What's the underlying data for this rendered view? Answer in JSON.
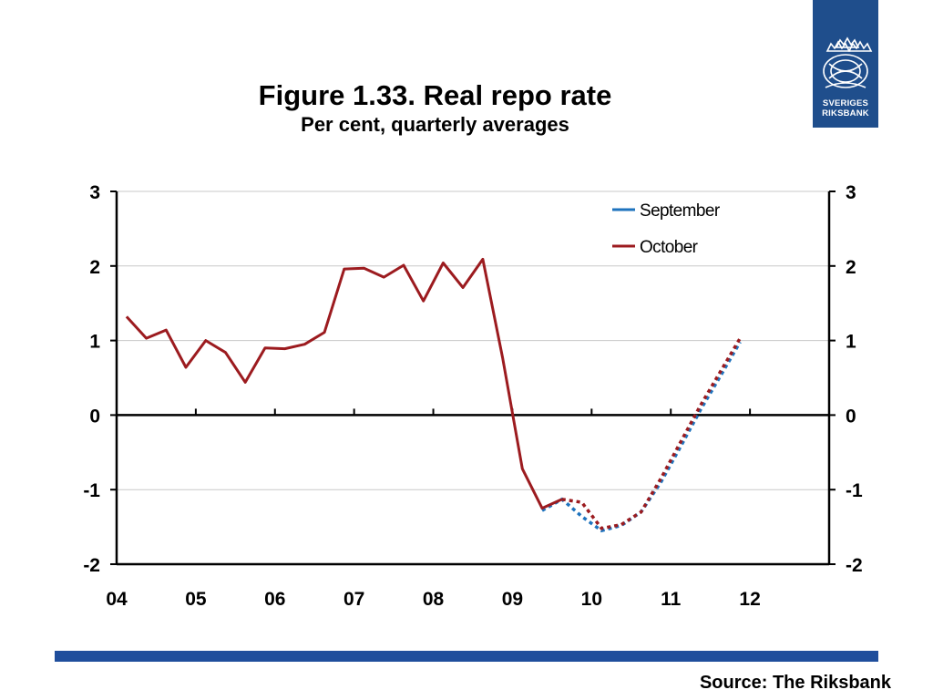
{
  "header": {
    "title": "Figure 1.33. Real repo rate",
    "subtitle": "Per cent, quarterly averages"
  },
  "logo": {
    "line1": "SVERIGES",
    "line2": "RIKSBANK",
    "icon": "crowned-crest-icon",
    "color": "#1f4e8c"
  },
  "footer": {
    "source": "Source: The Riksbank",
    "bar_color": "#1f4e9c"
  },
  "chart_data": {
    "type": "line",
    "title": "Figure 1.33. Real repo rate",
    "subtitle": "Per cent, quarterly averages",
    "xlabel": "",
    "ylabel": "",
    "x_ticks": [
      "04",
      "05",
      "06",
      "07",
      "08",
      "09",
      "10",
      "11",
      "12"
    ],
    "xlim": [
      2004,
      2013
    ],
    "ylim": [
      -2,
      3
    ],
    "y_ticks": [
      3,
      2,
      1,
      0,
      -1,
      -2
    ],
    "dual_y_axis": true,
    "grid": "horizontal",
    "legend": {
      "placement": "top-right"
    },
    "series": [
      {
        "name": "September",
        "color": "#1e73be",
        "style": "forecast-dashed",
        "points": [
          {
            "x": 2009.375,
            "y": -1.28
          },
          {
            "x": 2009.625,
            "y": -1.13
          },
          {
            "x": 2009.875,
            "y": -1.36
          },
          {
            "x": 2010.125,
            "y": -1.55
          },
          {
            "x": 2010.375,
            "y": -1.48
          },
          {
            "x": 2010.625,
            "y": -1.3
          },
          {
            "x": 2010.875,
            "y": -0.9
          },
          {
            "x": 2011.125,
            "y": -0.42
          },
          {
            "x": 2011.375,
            "y": 0.07
          },
          {
            "x": 2011.625,
            "y": 0.52
          },
          {
            "x": 2011.875,
            "y": 0.98
          }
        ]
      },
      {
        "name": "October",
        "color": "#9c1b1f",
        "forecast_from": 2009.625,
        "points": [
          {
            "x": 2004.125,
            "y": 1.32
          },
          {
            "x": 2004.375,
            "y": 1.03
          },
          {
            "x": 2004.625,
            "y": 1.14
          },
          {
            "x": 2004.875,
            "y": 0.64
          },
          {
            "x": 2005.125,
            "y": 1.0
          },
          {
            "x": 2005.375,
            "y": 0.84
          },
          {
            "x": 2005.625,
            "y": 0.44
          },
          {
            "x": 2005.875,
            "y": 0.9
          },
          {
            "x": 2006.125,
            "y": 0.89
          },
          {
            "x": 2006.375,
            "y": 0.95
          },
          {
            "x": 2006.625,
            "y": 1.11
          },
          {
            "x": 2006.875,
            "y": 1.96
          },
          {
            "x": 2007.125,
            "y": 1.97
          },
          {
            "x": 2007.375,
            "y": 1.85
          },
          {
            "x": 2007.625,
            "y": 2.01
          },
          {
            "x": 2007.875,
            "y": 1.53
          },
          {
            "x": 2008.125,
            "y": 2.04
          },
          {
            "x": 2008.375,
            "y": 1.71
          },
          {
            "x": 2008.625,
            "y": 2.09
          },
          {
            "x": 2008.875,
            "y": 0.77
          },
          {
            "x": 2009.125,
            "y": -0.72
          },
          {
            "x": 2009.375,
            "y": -1.25
          },
          {
            "x": 2009.625,
            "y": -1.13
          },
          {
            "x": 2009.875,
            "y": -1.17
          },
          {
            "x": 2010.125,
            "y": -1.52
          },
          {
            "x": 2010.375,
            "y": -1.47
          },
          {
            "x": 2010.625,
            "y": -1.3
          },
          {
            "x": 2010.875,
            "y": -0.85
          },
          {
            "x": 2011.125,
            "y": -0.36
          },
          {
            "x": 2011.375,
            "y": 0.13
          },
          {
            "x": 2011.625,
            "y": 0.58
          },
          {
            "x": 2011.875,
            "y": 1.03
          }
        ]
      }
    ]
  }
}
